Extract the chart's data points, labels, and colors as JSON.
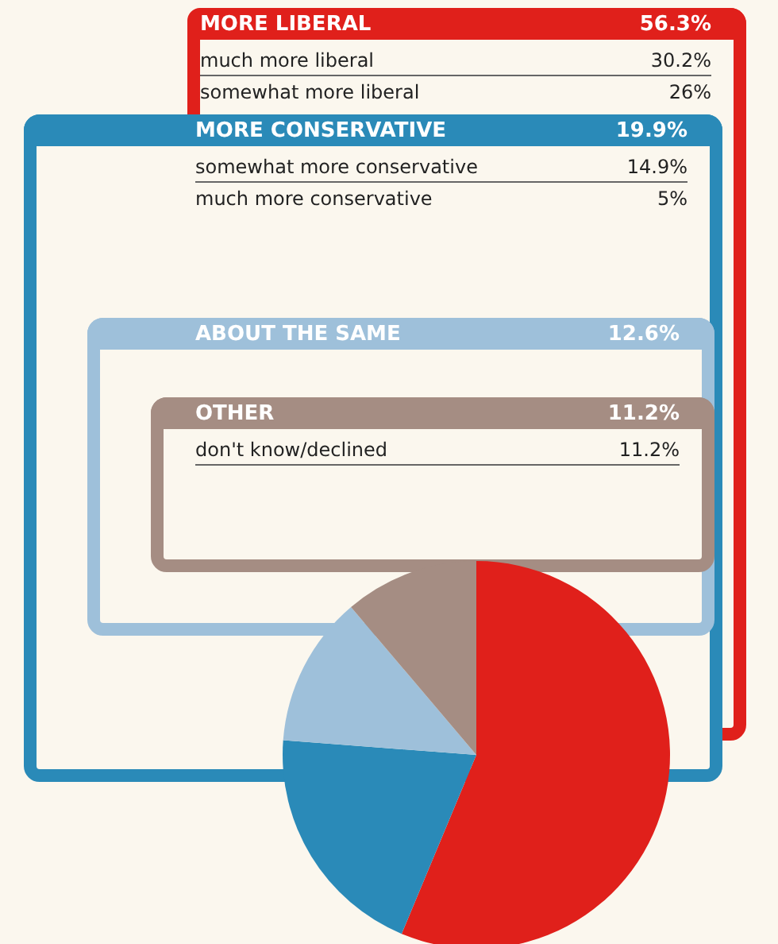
{
  "chart_data": {
    "type": "pie",
    "categories": [
      "MORE LIBERAL",
      "MORE CONSERVATIVE",
      "ABOUT THE SAME",
      "OTHER"
    ],
    "values": [
      56.3,
      19.9,
      12.6,
      11.2
    ],
    "colors": [
      "#e0201b",
      "#2a8ab8",
      "#9ec0da",
      "#a58d83"
    ],
    "value_labels": [
      "56.3%",
      "19.9%",
      "12.6%",
      "11.2%"
    ],
    "annotations": [
      "much more liberal 30.2%",
      "somewhat more liberal 26%",
      "somewhat more conservative 14.9%",
      "much more conservative 5%",
      "don't know/declined 11.2%"
    ],
    "legend": "top"
  }
}
